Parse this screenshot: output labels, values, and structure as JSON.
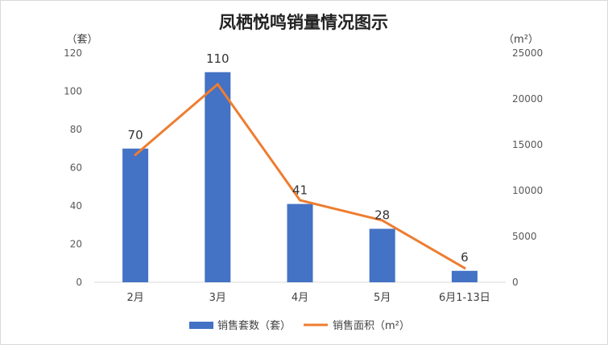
{
  "chart_data": {
    "type": "bar",
    "title": "凤栖悦鸣销量情况图示",
    "categories": [
      "2月",
      "3月",
      "4月",
      "5月",
      "6月1-13日"
    ],
    "y_left_unit": "（套）",
    "y_right_unit": "（m²）",
    "y_left_ticks": [
      "0",
      "20",
      "40",
      "60",
      "80",
      "100",
      "120"
    ],
    "y_right_ticks": [
      "0",
      "5000",
      "10000",
      "15000",
      "20000",
      "25000"
    ],
    "y_left_lim": [
      0,
      120
    ],
    "y_right_lim": [
      0,
      25000
    ],
    "series": [
      {
        "name": "销售套数（套）",
        "type": "bar",
        "axis": "left",
        "color": "#4472c4",
        "values": [
          70,
          110,
          41,
          28,
          6
        ],
        "labels": [
          "70",
          "110",
          "41",
          "28",
          "6"
        ]
      },
      {
        "name": "销售面积（m²）",
        "type": "line",
        "axis": "right",
        "color": "#ed7d31",
        "values": [
          13900,
          21600,
          8950,
          6750,
          1550
        ]
      }
    ],
    "legend_position": "bottom",
    "grid": false
  }
}
